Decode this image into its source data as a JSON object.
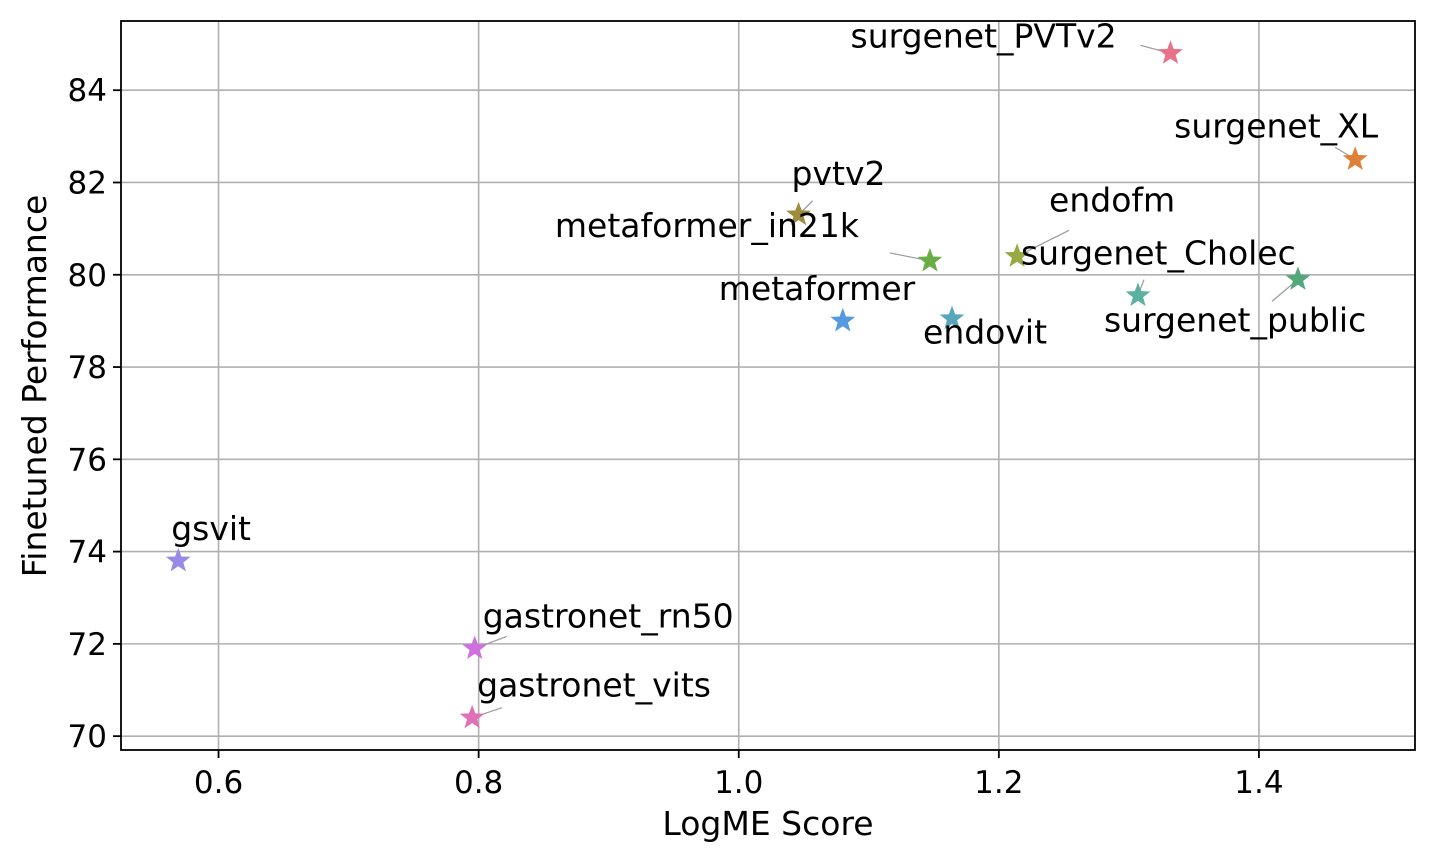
{
  "chart_data": {
    "type": "scatter",
    "title": "",
    "xlabel": "LogME Score",
    "ylabel": "Finetuned Performance",
    "xlim": [
      0.525,
      1.52
    ],
    "ylim": [
      69.7,
      85.5
    ],
    "xticks": [
      0.6,
      0.8,
      1.0,
      1.2,
      1.4
    ],
    "xtick_labels": [
      "0.6",
      "0.8",
      "1.0",
      "1.2",
      "1.4"
    ],
    "yticks": [
      70,
      72,
      74,
      76,
      78,
      80,
      82,
      84
    ],
    "ytick_labels": [
      "70",
      "72",
      "74",
      "76",
      "78",
      "80",
      "82",
      "84"
    ],
    "grid": true,
    "marker": "star",
    "points": [
      {
        "name": "surgenet_PVTv2",
        "x": 1.332,
        "y": 84.8,
        "color": "#e8728a"
      },
      {
        "name": "surgenet_XL",
        "x": 1.474,
        "y": 82.5,
        "color": "#e08038"
      },
      {
        "name": "pvtv2",
        "x": 1.046,
        "y": 81.3,
        "color": "#a08a3e"
      },
      {
        "name": "metaformer_in21k",
        "x": 1.147,
        "y": 80.3,
        "color": "#6aac46"
      },
      {
        "name": "endofm",
        "x": 1.214,
        "y": 80.4,
        "color": "#98a842"
      },
      {
        "name": "surgenet_Cholec",
        "x": 1.307,
        "y": 79.55,
        "color": "#5cb0a0"
      },
      {
        "name": "surgenet_public",
        "x": 1.43,
        "y": 79.9,
        "color": "#52a87a"
      },
      {
        "name": "metaformer",
        "x": 1.08,
        "y": 79.0,
        "color": "#5599e0"
      },
      {
        "name": "endovit",
        "x": 1.164,
        "y": 79.05,
        "color": "#58a6bc"
      },
      {
        "name": "gsvit",
        "x": 0.569,
        "y": 73.8,
        "color": "#9a8ae6"
      },
      {
        "name": "gastronet_rn50",
        "x": 0.797,
        "y": 71.9,
        "color": "#d070e0"
      },
      {
        "name": "gastronet_vits",
        "x": 0.795,
        "y": 70.4,
        "color": "#e070b8"
      }
    ]
  }
}
